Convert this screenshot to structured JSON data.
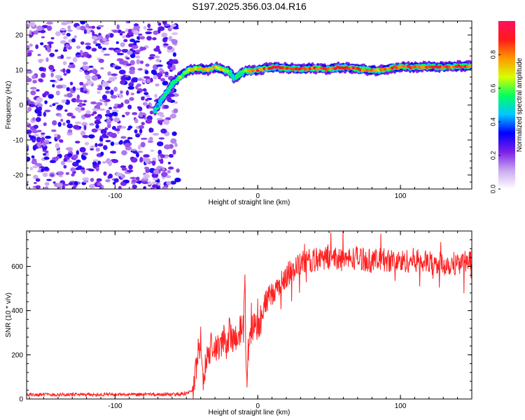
{
  "title": "S197.2025.356.03.04.R16",
  "chart_data": [
    {
      "type": "heatmap",
      "xlabel": "Height of straight line (km)",
      "ylabel": "Frequency (Hz)",
      "xlim": [
        -162,
        150
      ],
      "ylim": [
        -24,
        24
      ],
      "xticks": [
        -100,
        0,
        100
      ],
      "yticks": [
        -20,
        -10,
        0,
        10,
        20
      ],
      "xtick_labels": [
        "-100",
        "0",
        "100"
      ],
      "ytick_labels": [
        "-20",
        "-10",
        "0",
        "10",
        "20"
      ],
      "colorbar": {
        "label": "Normalized spectral amplitude",
        "range": [
          0,
          1
        ],
        "ticks": [
          0.0,
          0.2,
          0.4,
          0.6,
          0.8
        ],
        "tick_labels": [
          "0.0",
          "0.2",
          "0.4",
          "0.6",
          "0.8"
        ],
        "colors": [
          "#ffffff",
          "#c9a8f0",
          "#7a1fe8",
          "#0000ff",
          "#00c8ff",
          "#00ff60",
          "#d8ff00",
          "#ff9900",
          "#ff1a1a",
          "#ff1060"
        ]
      },
      "noise_region_x": [
        -162,
        -57
      ],
      "ridge": {
        "x": [
          -72,
          -68,
          -64,
          -60,
          -56,
          -52,
          -48,
          -44,
          -40,
          -35,
          -30,
          -25,
          -20,
          -16,
          -12,
          -8,
          -4,
          0,
          10,
          20,
          30,
          40,
          50,
          60,
          70,
          80,
          85,
          90,
          100,
          110,
          120,
          130,
          140,
          150
        ],
        "frequency": [
          -1.5,
          1,
          3.5,
          6,
          7.5,
          9,
          10,
          10.3,
          10.5,
          10,
          10.8,
          10.2,
          9.5,
          7.5,
          9,
          9.8,
          9.7,
          10,
          10.8,
          10.5,
          10.3,
          10.5,
          10.3,
          10.8,
          10.2,
          10,
          9.8,
          10.3,
          11,
          10.8,
          11,
          10.8,
          11.1,
          11.1
        ],
        "amplitude": [
          0.45,
          0.5,
          0.55,
          0.6,
          0.6,
          0.65,
          0.7,
          0.75,
          0.8,
          0.8,
          0.75,
          0.7,
          0.6,
          0.5,
          0.6,
          0.75,
          0.8,
          0.85,
          0.9,
          0.9,
          0.9,
          0.9,
          0.85,
          0.9,
          0.9,
          0.85,
          0.8,
          0.85,
          0.9,
          0.9,
          0.9,
          0.9,
          0.9,
          0.9
        ]
      }
    },
    {
      "type": "line",
      "xlabel": "Height of straight line (km)",
      "ylabel": "SNR (10 * v/v)",
      "xlim": [
        -162,
        150
      ],
      "ylim": [
        0,
        760
      ],
      "xticks": [
        -100,
        0,
        100
      ],
      "yticks": [
        0,
        200,
        400,
        600
      ],
      "xtick_labels": [
        "-100",
        "0",
        "100"
      ],
      "ytick_labels": [
        "0",
        "200",
        "400",
        "600"
      ],
      "color": "#ff2020",
      "series": [
        {
          "name": "SNR",
          "x": [
            -162,
            -140,
            -120,
            -100,
            -80,
            -60,
            -50,
            -46,
            -44,
            -42,
            -40,
            -38,
            -36,
            -34,
            -32,
            -30,
            -28,
            -26,
            -24,
            -22,
            -20,
            -18,
            -16,
            -14,
            -12,
            -10,
            -9,
            -8,
            -6,
            -4,
            -2,
            0,
            4,
            8,
            12,
            16,
            20,
            24,
            28,
            32,
            40,
            50,
            60,
            70,
            80,
            90,
            100,
            110,
            120,
            130,
            140,
            150
          ],
          "y": [
            20,
            20,
            20,
            20,
            20,
            20,
            25,
            40,
            100,
            200,
            260,
            60,
            180,
            200,
            250,
            230,
            220,
            250,
            280,
            230,
            300,
            260,
            280,
            300,
            320,
            310,
            560,
            60,
            300,
            320,
            360,
            320,
            420,
            460,
            480,
            520,
            560,
            580,
            600,
            620,
            630,
            640,
            630,
            640,
            625,
            630,
            620,
            630,
            615,
            610,
            615,
            620
          ]
        }
      ]
    }
  ]
}
